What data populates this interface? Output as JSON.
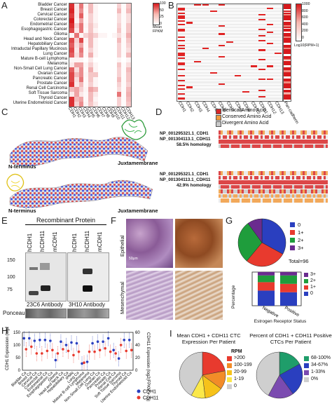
{
  "panels": {
    "A": {
      "label": "A",
      "rows": [
        "Bladder Cancer",
        "Breast Cancer",
        "Cervical Cancer",
        "Colorectal Cancer",
        "Endometrial Cancer",
        "Esophagogastric Cancer",
        "Glioma",
        "Head and Neck Cancer",
        "Hepatobiliary Cancer",
        "Intraductal Papillary Mucinous",
        "Lung Cancer",
        "Mature B-cell Lymphoma",
        "Melanoma",
        "Non-Small Cell Lung Cancer",
        "Ovarian Cancer",
        "Pancreatic Cancer",
        "Prostate Cancer",
        "Renal Cell Carcinoma",
        "Soft Tissue Sarcoma",
        "Thyroid Cancer",
        "Uterine Endometrioid Cancer"
      ],
      "cols": [
        "CDH1",
        "CDH2",
        "CDH3",
        "CDH4",
        "CDH5",
        "CDH6",
        "CDH7",
        "CDH8",
        "CDH9",
        "CDH10",
        "CDH11",
        "CDH12",
        "CDH13"
      ],
      "legend_ticks": [
        "100",
        "50",
        "25",
        "0"
      ],
      "legend_title": "Mean FPKM",
      "values": [
        [
          90,
          10,
          60,
          5,
          30,
          5,
          0,
          0,
          0,
          0,
          20,
          2,
          25
        ],
        [
          95,
          10,
          50,
          3,
          30,
          5,
          0,
          0,
          0,
          0,
          30,
          2,
          30
        ],
        [
          85,
          10,
          70,
          3,
          20,
          5,
          0,
          0,
          0,
          0,
          15,
          2,
          15
        ],
        [
          100,
          5,
          40,
          3,
          20,
          5,
          0,
          0,
          0,
          0,
          15,
          2,
          15
        ],
        [
          90,
          20,
          60,
          5,
          25,
          10,
          0,
          0,
          0,
          0,
          20,
          2,
          25
        ],
        [
          80,
          10,
          60,
          3,
          25,
          5,
          0,
          0,
          0,
          0,
          25,
          2,
          25
        ],
        [
          5,
          60,
          5,
          20,
          30,
          20,
          5,
          5,
          0,
          5,
          15,
          5,
          35
        ],
        [
          80,
          20,
          80,
          5,
          30,
          5,
          0,
          0,
          0,
          0,
          30,
          2,
          25
        ],
        [
          70,
          15,
          40,
          3,
          30,
          5,
          0,
          0,
          0,
          0,
          20,
          2,
          20
        ],
        [
          80,
          10,
          60,
          3,
          20,
          5,
          0,
          0,
          0,
          0,
          20,
          2,
          15
        ],
        [
          70,
          15,
          50,
          3,
          35,
          5,
          0,
          0,
          0,
          0,
          20,
          2,
          30
        ],
        [
          5,
          5,
          5,
          0,
          10,
          0,
          0,
          0,
          0,
          0,
          5,
          0,
          5
        ],
        [
          10,
          40,
          40,
          5,
          20,
          5,
          0,
          0,
          0,
          0,
          25,
          2,
          15
        ],
        [
          70,
          15,
          50,
          3,
          35,
          5,
          0,
          0,
          0,
          0,
          20,
          2,
          30
        ],
        [
          80,
          30,
          50,
          5,
          25,
          25,
          0,
          0,
          0,
          0,
          20,
          2,
          25
        ],
        [
          80,
          15,
          60,
          3,
          25,
          5,
          0,
          0,
          0,
          0,
          30,
          2,
          25
        ],
        [
          90,
          10,
          30,
          3,
          20,
          5,
          0,
          0,
          0,
          0,
          20,
          2,
          20
        ],
        [
          30,
          40,
          20,
          5,
          40,
          30,
          0,
          0,
          0,
          0,
          15,
          2,
          30
        ],
        [
          10,
          40,
          10,
          3,
          30,
          10,
          0,
          0,
          0,
          0,
          60,
          2,
          35
        ],
        [
          90,
          30,
          40,
          3,
          30,
          5,
          0,
          0,
          0,
          0,
          20,
          2,
          30
        ],
        [
          90,
          20,
          50,
          5,
          25,
          10,
          0,
          0,
          0,
          0,
          20,
          2,
          25
        ]
      ]
    },
    "B": {
      "label": "B",
      "cols": [
        "CDH1",
        "CDH2",
        "CDH3",
        "CDH4",
        "CDH5",
        "CDH6",
        "CDH7",
        "CDH8",
        "CDH9",
        "CDH10",
        "CDH11",
        "CDH12",
        "CDH13",
        "Pan-cadherin"
      ],
      "legend_ticks": [
        "1000",
        "800",
        "600",
        "400",
        "200",
        "0"
      ],
      "legend_title": "Log10(RPM+1)"
    },
    "C": {
      "label": "C",
      "top_left": "N-terminus",
      "top_right": "Juxtamembrane",
      "bottom_left": "N-terminus",
      "bottom_right": "Juxtamembrane"
    },
    "D": {
      "label": "D",
      "legend": [
        {
          "text": "Identical Amino Acid",
          "color": "#d62728"
        },
        {
          "text": "Conserved Amino Acid",
          "color": "#f09a3e"
        },
        {
          "text": "Divergent Amino Acid",
          "color": "#c8c8c8"
        }
      ],
      "pair1_top": "NP_001295321.1_CDH1",
      "pair1_bottom": "NP_001304113.1_CDH11",
      "pair1_homology": "58.5% homology",
      "pair2_top": "NP_001295321.1_CDH1",
      "pair2_bottom": "NP_001304113.1_CDH11",
      "pair2_homology": "42.9% homology"
    },
    "E": {
      "label": "E",
      "title": "Recombinant Protein",
      "lanes_left": [
        "hCDH1",
        "hCDH11",
        "mCDH1"
      ],
      "lanes_right": [
        "hCDH1",
        "hCDH11",
        "mCDH1"
      ],
      "mw": [
        "150",
        "100",
        "75"
      ],
      "antibody_left": "23C6 Antibody",
      "antibody_right": "3H10 Antibody",
      "ponceau": "Ponceau"
    },
    "F": {
      "label": "F",
      "row1": "Epithelial",
      "row2": "Mesenchymal",
      "scale": "50μm"
    },
    "G": {
      "label": "G",
      "pie_legend": [
        "0",
        "1+",
        "2+",
        "3+"
      ],
      "total": "Total=96",
      "bar_ylabel": "Percentage",
      "bar_xlabel": "Estrogen Receptor Status",
      "bar_categories": [
        "Negative",
        "Positive"
      ],
      "bar_legend": [
        "3+",
        "2+",
        "1+",
        "0"
      ],
      "colors": {
        "0": "#2a3fbf",
        "1+": "#e83a2e",
        "2+": "#1f9d3c",
        "3+": "#6a2c8f"
      }
    },
    "H": {
      "label": "H",
      "ylabel_left": "CDH1 Expression (log2(FPKM + 1))",
      "ylabel_right": "CDH11 Expression (log2(FPKM + 1))",
      "left_ticks": [
        "150",
        "100",
        "50",
        "0"
      ],
      "right_ticks": [
        "60",
        "40",
        "20",
        "0"
      ],
      "categories": [
        "Bladder Ca",
        "Breast Ca",
        "Cervical Ca",
        "Colorectal Ca",
        "Endometrial Ca",
        "Esophagogastric Ca",
        "Glioma",
        "Head and Neck Ca",
        "Hepatobiliary Ca",
        "IPMN",
        "Lung Ca",
        "Mature B-cell Lymphoma",
        "Melanoma",
        "Non-Small Cell Lung Ca",
        "Ovarian Ca",
        "Pancreatic Ca",
        "Prostate Ca",
        "Renal Cell Ca",
        "Soft Tissue Sarcoma",
        "Thyroid Ca",
        "Uterine Endometrioid Ca"
      ],
      "legend": [
        {
          "text": "CDH1",
          "color": "#2a3fbf"
        },
        {
          "text": "CDH11",
          "color": "#e83a2e"
        }
      ]
    },
    "I": {
      "label": "I",
      "title1": "Mean CDH1 + CDH11 CTC Expression Per Patient",
      "legend1_title": "RPM",
      "legend1": [
        {
          "text": ">200",
          "color": "#e83a2e"
        },
        {
          "text": "100-199",
          "color": "#f28c28"
        },
        {
          "text": "20-99",
          "color": "#f6c21a"
        },
        {
          "text": "1-19",
          "color": "#fbe84a"
        },
        {
          "text": "0",
          "color": "#cfcfcf"
        }
      ],
      "title2": "Percent of CDH1 + CDH11 Positive CTCs Per Patient",
      "legend2": [
        {
          "text": "68-100%",
          "color": "#1f9d6a"
        },
        {
          "text": "34-67%",
          "color": "#2a3fbf"
        },
        {
          "text": "1-33%",
          "color": "#7b4bb0"
        },
        {
          "text": "0%",
          "color": "#cfcfcf"
        }
      ]
    }
  },
  "chart_data": [
    {
      "type": "pie",
      "title": "",
      "values": [
        {
          "name": "0",
          "value": 33,
          "color": "#2a3fbf"
        },
        {
          "name": "1+",
          "value": 28,
          "color": "#e83a2e"
        },
        {
          "name": "2+",
          "value": 29,
          "color": "#1f9d3c"
        },
        {
          "name": "3+",
          "value": 10,
          "color": "#6a2c8f"
        }
      ]
    },
    {
      "type": "bar",
      "stacked": true,
      "categories": [
        "Negative",
        "Positive"
      ],
      "series": [
        {
          "name": "0",
          "values": [
            45,
            40
          ]
        },
        {
          "name": "1+",
          "values": [
            25,
            25
          ]
        },
        {
          "name": "2+",
          "values": [
            20,
            25
          ]
        },
        {
          "name": "3+",
          "values": [
            10,
            10
          ]
        }
      ],
      "ylabel": "Percentage",
      "xlabel": "Estrogen Receptor Status"
    },
    {
      "type": "pie",
      "title": "Mean CDH1 + CDH11 CTC Expression Per Patient",
      "values": [
        {
          "name": ">200",
          "value": 22,
          "color": "#e83a2e"
        },
        {
          "name": "100-199",
          "value": 13,
          "color": "#f28c28"
        },
        {
          "name": "20-99",
          "value": 13,
          "color": "#f6c21a"
        },
        {
          "name": "1-19",
          "value": 10,
          "color": "#fbe84a"
        },
        {
          "name": "0",
          "value": 42,
          "color": "#cfcfcf"
        }
      ]
    },
    {
      "type": "pie",
      "title": "Percent of CDH1 + CDH11 Positive CTCs Per Patient",
      "values": [
        {
          "name": "68-100%",
          "value": 17,
          "color": "#1f9d6a"
        },
        {
          "name": "34-67%",
          "value": 23,
          "color": "#2a3fbf"
        },
        {
          "name": "1-33%",
          "value": 18,
          "color": "#7b4bb0"
        },
        {
          "name": "0%",
          "value": 42,
          "color": "#cfcfcf"
        }
      ]
    }
  ]
}
